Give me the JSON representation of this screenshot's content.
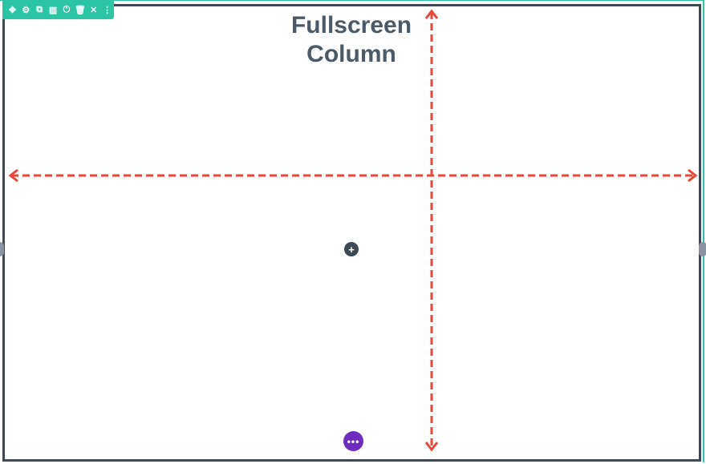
{
  "toolbar": {
    "icons": [
      "move-icon",
      "gear-icon",
      "duplicate-icon",
      "columns-icon",
      "power-icon",
      "trash-icon",
      "close-icon",
      "more-vertical-icon"
    ],
    "glyphs": {
      "move": "✥",
      "gear": "⚙",
      "duplicate": "⧉",
      "columns": "▥",
      "power": "⏻",
      "trash": "🗑",
      "close": "✕",
      "more": "⋮"
    }
  },
  "title": {
    "line1": "Fullscreen",
    "line2": "Column"
  },
  "add_button": {
    "glyph": "+"
  },
  "more_button": {
    "glyph": "•••"
  },
  "colors": {
    "accent": "#2bc4a4",
    "border": "#3d4a56",
    "arrow": "#e8473a",
    "more": "#6f2bbf"
  }
}
